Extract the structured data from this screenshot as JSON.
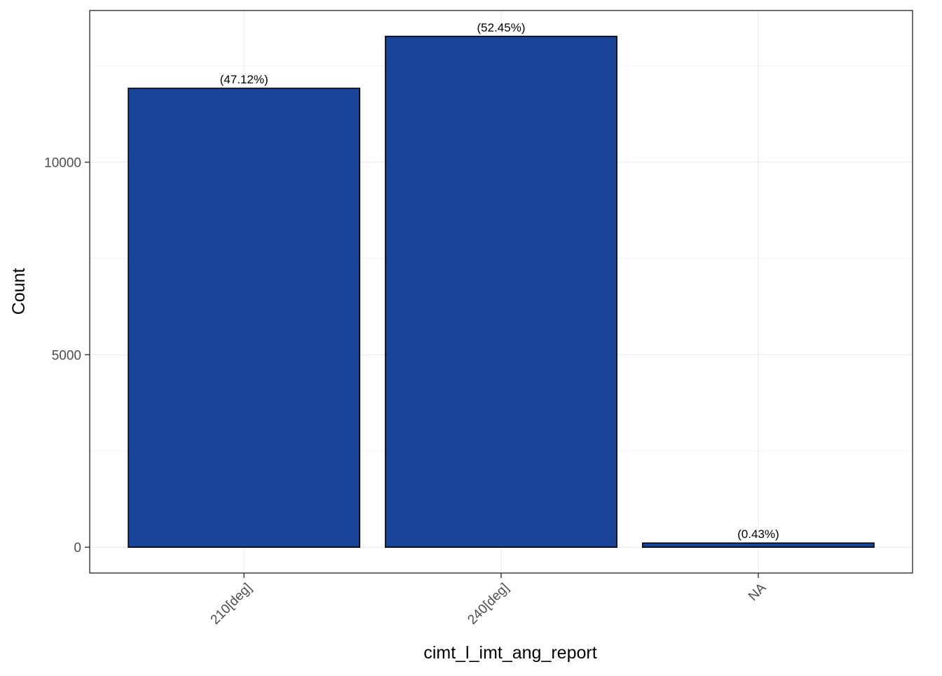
{
  "chart_data": {
    "type": "bar",
    "title": "",
    "xlabel": "cimt_l_imt_ang_report",
    "ylabel": "Count",
    "categories": [
      "210[deg]",
      "240[deg]",
      "NA"
    ],
    "values": [
      11920,
      13269,
      109
    ],
    "data_labels": [
      "(47.12%)",
      "(52.45%)",
      "(0.43%)"
    ],
    "ylim": [
      -670,
      13940
    ],
    "yticks": [
      0,
      5000,
      10000
    ],
    "ytick_labels": [
      "0",
      "5000",
      "10000"
    ],
    "grid": true,
    "legend": "none",
    "bar_color": "#18449A",
    "bar_outline": "#000000"
  }
}
